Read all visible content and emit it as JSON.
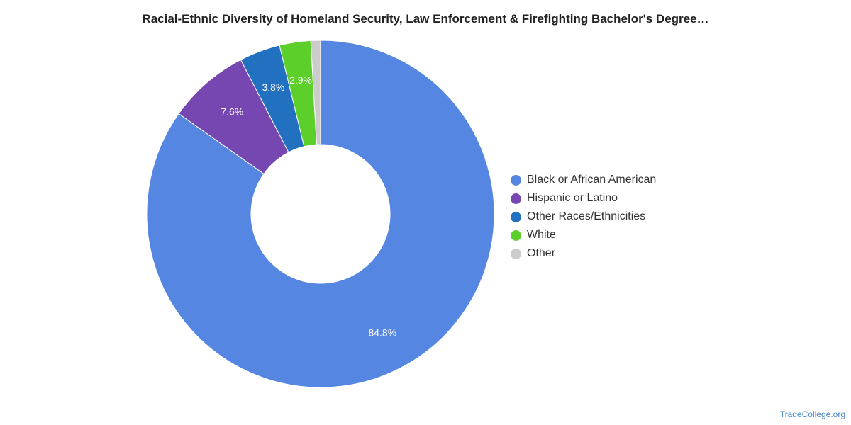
{
  "chart_data": {
    "type": "pie",
    "title": "Racial-Ethnic Diversity of Homeland Security, Law Enforcement & Firefighting Bachelor's Degree…",
    "donut": true,
    "legend_position": "right",
    "slices": [
      {
        "label": "Black or African American",
        "value": 84.8,
        "value_label": "84.8%",
        "color": "#5486e2"
      },
      {
        "label": "Hispanic or Latino",
        "value": 7.6,
        "value_label": "7.6%",
        "color": "#7647b1"
      },
      {
        "label": "Other Races/Ethnicities",
        "value": 3.8,
        "value_label": "3.8%",
        "color": "#2271c1"
      },
      {
        "label": "White",
        "value": 2.9,
        "value_label": "2.9%",
        "color": "#5dcf2b"
      },
      {
        "label": "Other",
        "value": 0.9,
        "value_label": "",
        "color": "#cccccc"
      }
    ]
  },
  "footer": {
    "source": "TradeCollege.org"
  }
}
